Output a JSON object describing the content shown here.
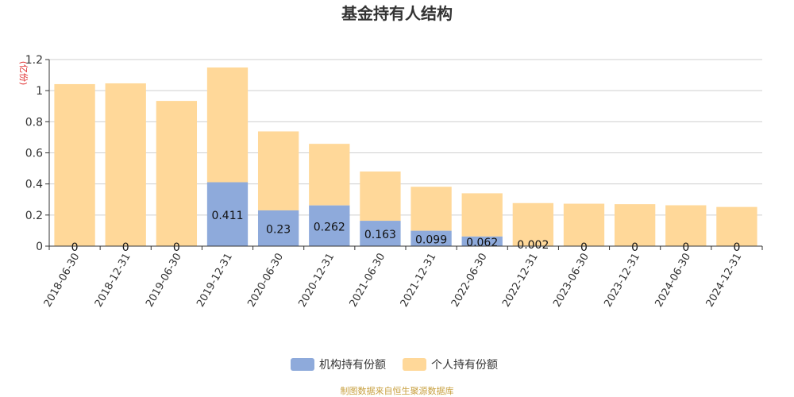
{
  "chart_data": {
    "type": "bar",
    "stacked": true,
    "title": "基金持有人结构",
    "ylabel": "(亿份)",
    "ylim": [
      0,
      1.2
    ],
    "yticks": [
      "0",
      "0.2",
      "0.4",
      "0.6",
      "0.8",
      "1",
      "1.2"
    ],
    "grid": true,
    "legend_position": "bottom",
    "categories": [
      "2018-06-30",
      "2018-12-31",
      "2019-06-30",
      "2019-12-31",
      "2020-06-30",
      "2020-12-31",
      "2021-06-30",
      "2021-12-31",
      "2022-06-30",
      "2022-12-31",
      "2023-06-30",
      "2023-12-31",
      "2024-06-30",
      "2024-12-31"
    ],
    "series": [
      {
        "name": "机构持有份额",
        "color": "#8eaadb",
        "values": [
          0,
          0,
          0,
          0.411,
          0.23,
          0.262,
          0.163,
          0.099,
          0.062,
          0.002,
          0,
          0,
          0,
          0
        ],
        "labels": [
          "0",
          "0",
          "0",
          "0.411",
          "0.23",
          "0.262",
          "0.163",
          "0.099",
          "0.062",
          "0.002",
          "0",
          "0",
          "0",
          "0"
        ]
      },
      {
        "name": "个人持有份额",
        "color": "#ffd899",
        "values": [
          1.042,
          1.047,
          0.934,
          0.738,
          0.508,
          0.396,
          0.317,
          0.283,
          0.278,
          0.275,
          0.273,
          0.27,
          0.263,
          0.252
        ]
      }
    ]
  },
  "footer": {
    "source": "制图数据来自恒生聚源数据库"
  }
}
